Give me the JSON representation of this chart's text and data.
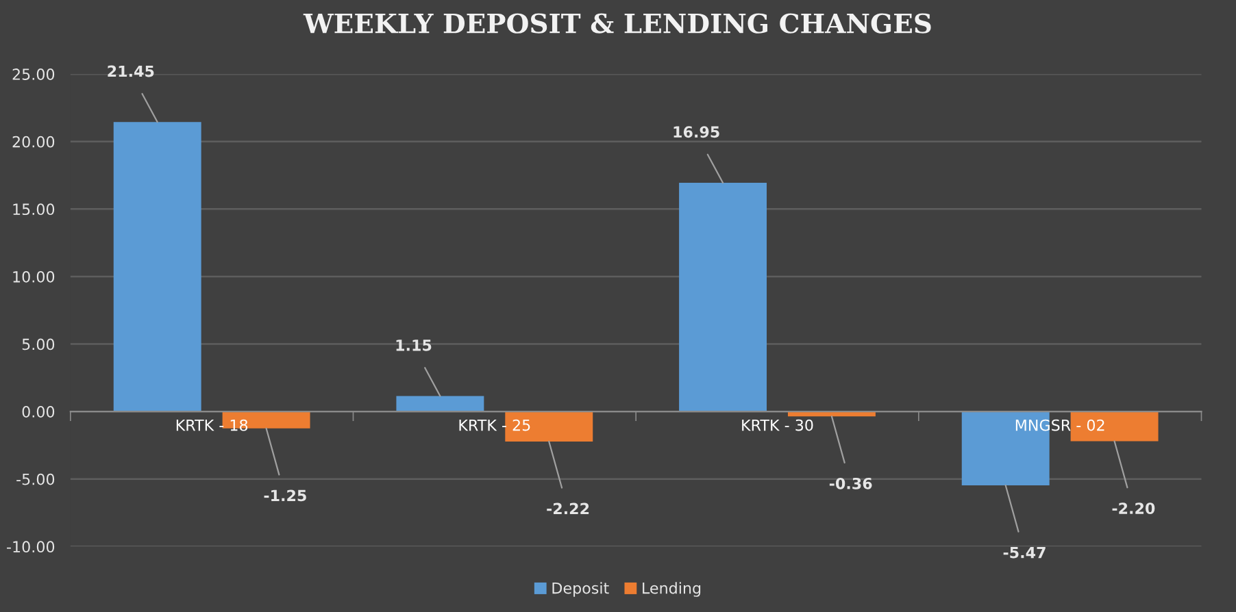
{
  "chart_data": {
    "type": "bar",
    "title": "WEEKLY DEPOSIT & LENDING CHANGES",
    "categories": [
      "KRTK - 18",
      "KRTK - 25",
      "KRTK - 30",
      "MNGSR - 02"
    ],
    "series": [
      {
        "name": "Deposit",
        "color": "#5b9bd5",
        "values": [
          21.45,
          1.15,
          16.95,
          -5.47
        ],
        "value_labels": [
          "21.45",
          "1.15",
          "16.95",
          "-5.47"
        ]
      },
      {
        "name": "Lending",
        "color": "#ed7d31",
        "values": [
          -1.25,
          -2.22,
          -0.36,
          -2.2
        ],
        "value_labels": [
          "-1.25",
          "-2.22",
          "-0.36",
          "-2.20"
        ]
      }
    ],
    "ylim": [
      -10,
      25
    ],
    "yticks": [
      {
        "value": -10,
        "label": "-10.00"
      },
      {
        "value": -5,
        "label": "-5.00"
      },
      {
        "value": 0,
        "label": "0.00"
      },
      {
        "value": 5,
        "label": "5.00"
      },
      {
        "value": 10,
        "label": "10.00"
      },
      {
        "value": 15,
        "label": "15.00"
      },
      {
        "value": 20,
        "label": "20.00"
      },
      {
        "value": 25,
        "label": "25.00"
      }
    ],
    "grid": "y",
    "legend": "bottom"
  }
}
